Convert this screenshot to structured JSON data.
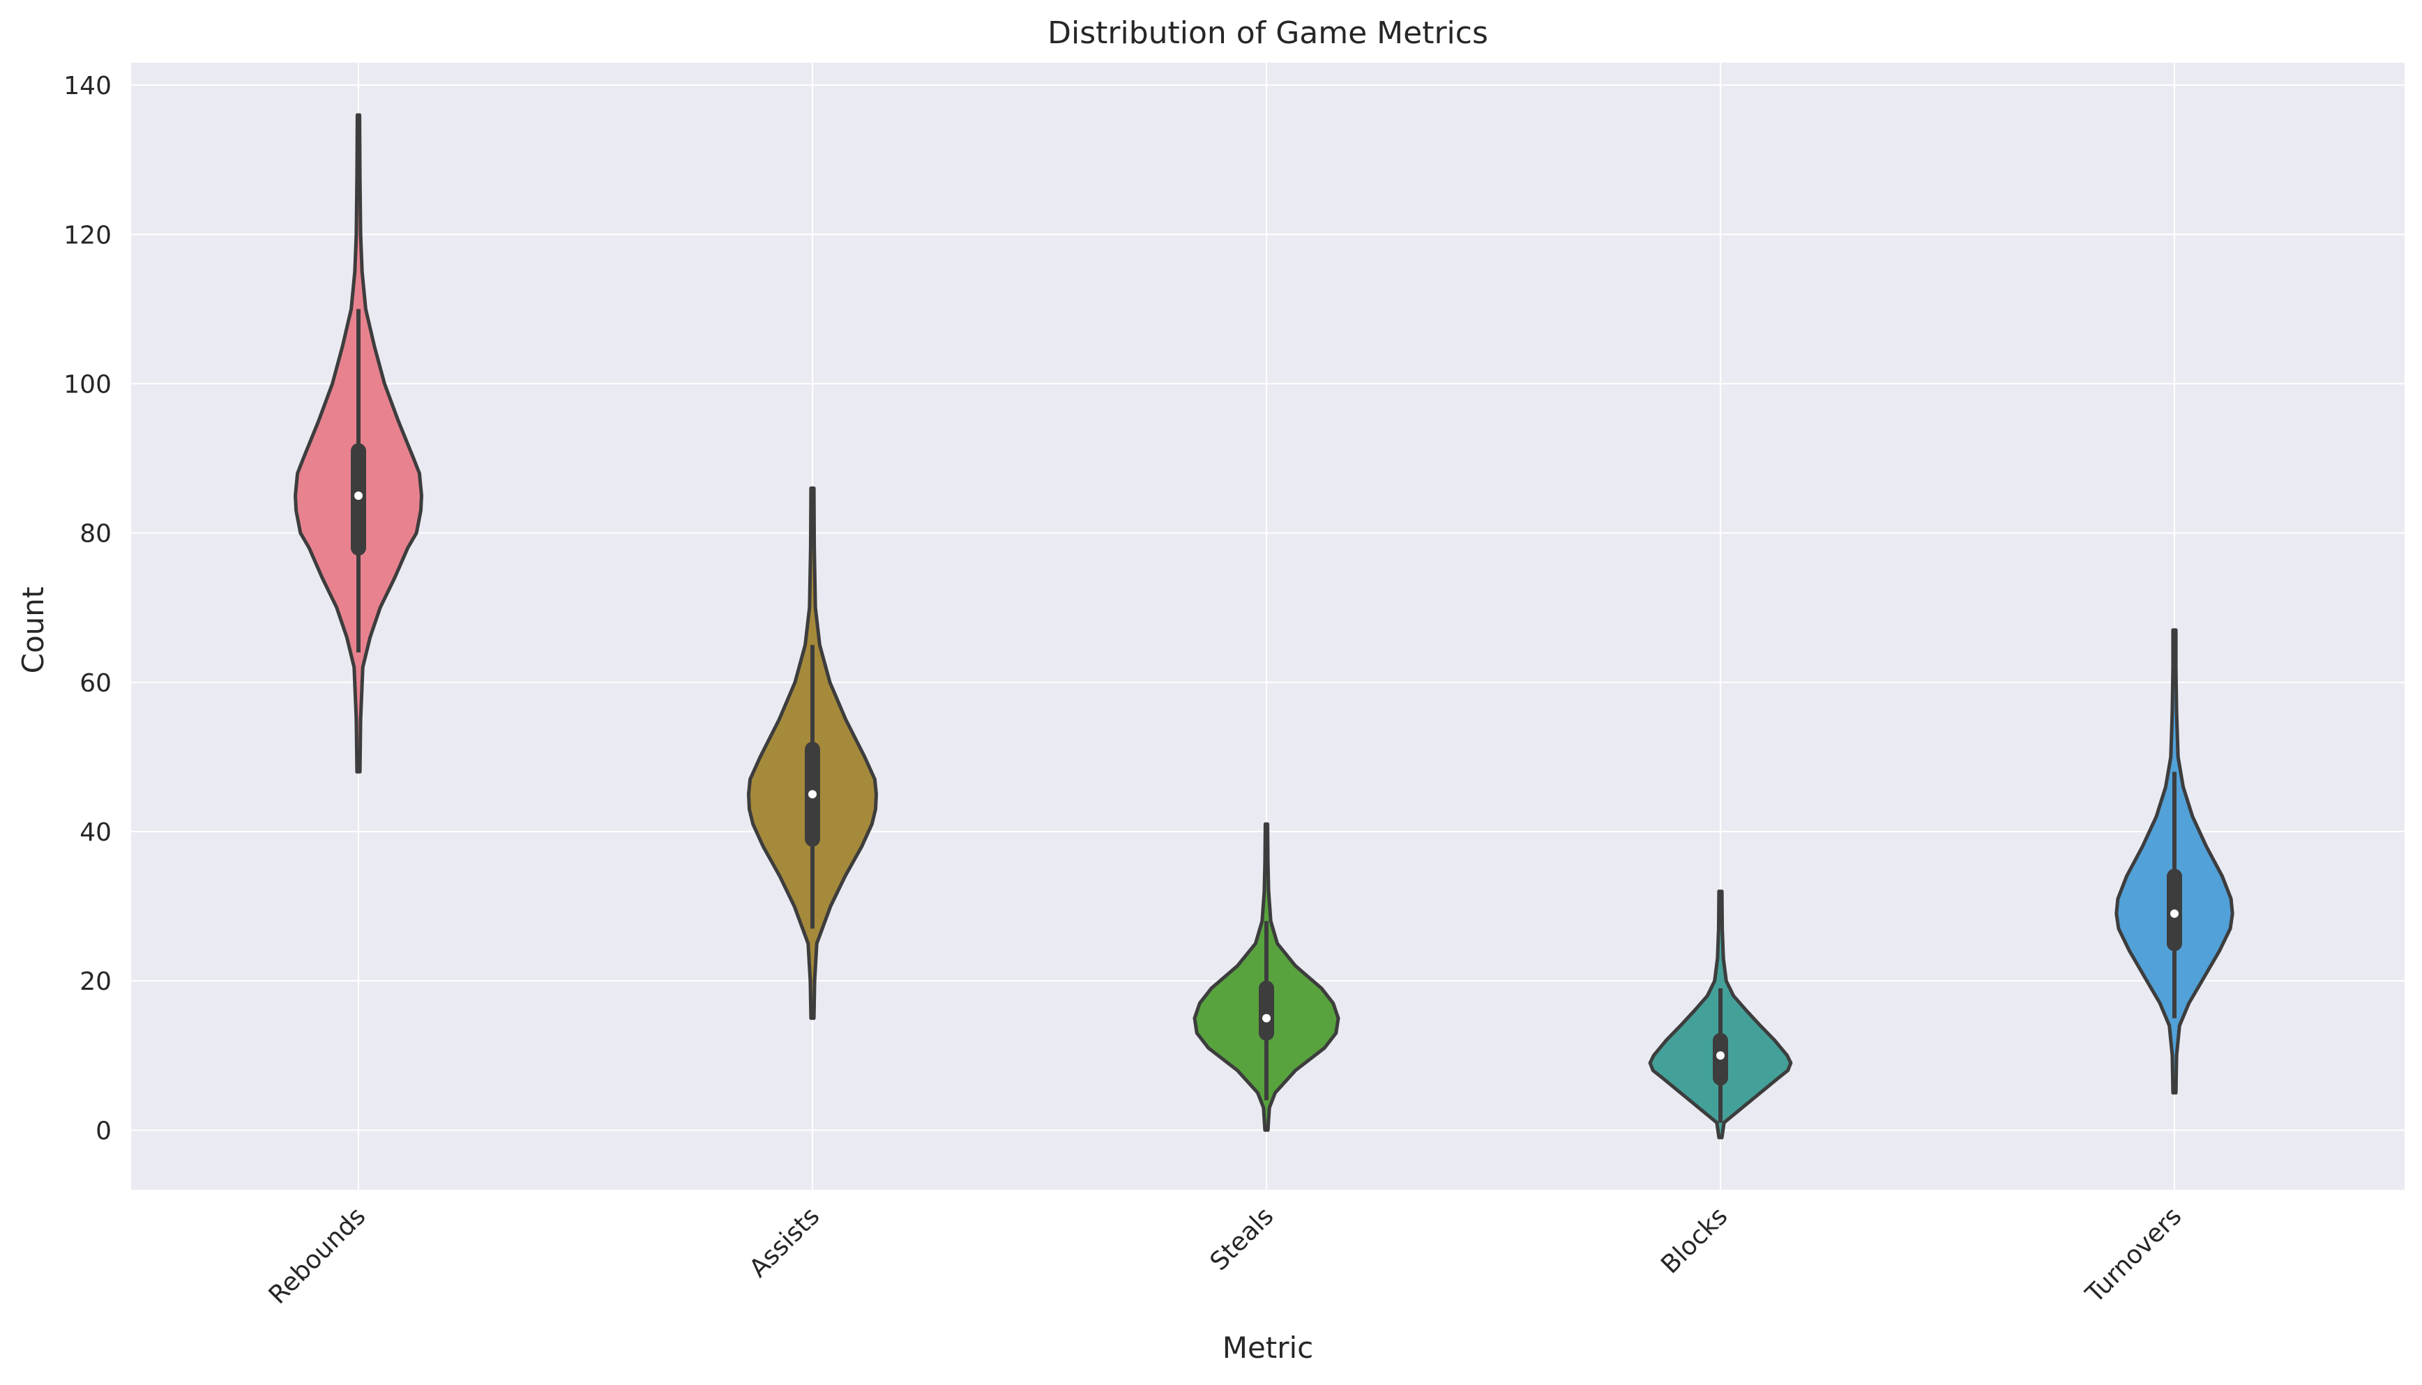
{
  "chart_data": {
    "type": "violin",
    "title": "Distribution of Game Metrics",
    "xlabel": "Metric",
    "ylabel": "Count",
    "ylim": [
      -8,
      143
    ],
    "yticks": [
      0,
      20,
      40,
      60,
      80,
      100,
      120,
      140
    ],
    "grid": true,
    "legend": "none",
    "categories": [
      "Rebounds",
      "Assists",
      "Steals",
      "Blocks",
      "Turnovers"
    ],
    "colors": [
      "#e8828f",
      "#a68a3b",
      "#58a33e",
      "#44a19a",
      "#52a1d8"
    ],
    "edge_color": "#3d3d3d",
    "background_color": "#eaeaf2",
    "grid_color": "#ffffff",
    "series": [
      {
        "category": "Rebounds",
        "min": 48,
        "max": 136,
        "q1": 78,
        "median": 85,
        "q3": 91,
        "whisker_low": 64,
        "whisker_high": 110,
        "profile": [
          [
            48,
            0.02
          ],
          [
            55,
            0.03
          ],
          [
            62,
            0.06
          ],
          [
            66,
            0.16
          ],
          [
            70,
            0.3
          ],
          [
            74,
            0.5
          ],
          [
            78,
            0.68
          ],
          [
            80,
            0.8
          ],
          [
            83,
            0.86
          ],
          [
            85,
            0.87
          ],
          [
            88,
            0.84
          ],
          [
            90,
            0.76
          ],
          [
            95,
            0.55
          ],
          [
            100,
            0.36
          ],
          [
            105,
            0.22
          ],
          [
            110,
            0.1
          ],
          [
            115,
            0.05
          ],
          [
            120,
            0.03
          ],
          [
            128,
            0.02
          ],
          [
            136,
            0.015
          ]
        ]
      },
      {
        "category": "Assists",
        "min": 15,
        "max": 86,
        "q1": 39,
        "median": 45,
        "q3": 51,
        "whisker_low": 27,
        "whisker_high": 65,
        "profile": [
          [
            15,
            0.02
          ],
          [
            20,
            0.03
          ],
          [
            25,
            0.06
          ],
          [
            30,
            0.25
          ],
          [
            34,
            0.45
          ],
          [
            38,
            0.68
          ],
          [
            41,
            0.82
          ],
          [
            43,
            0.87
          ],
          [
            45,
            0.88
          ],
          [
            47,
            0.86
          ],
          [
            50,
            0.72
          ],
          [
            55,
            0.46
          ],
          [
            60,
            0.24
          ],
          [
            65,
            0.1
          ],
          [
            70,
            0.04
          ],
          [
            78,
            0.025
          ],
          [
            86,
            0.02
          ]
        ]
      },
      {
        "category": "Steals",
        "min": 0,
        "max": 41,
        "q1": 13,
        "median": 15,
        "q3": 19,
        "whisker_low": 4,
        "whisker_high": 28,
        "profile": [
          [
            0,
            0.02
          ],
          [
            3,
            0.04
          ],
          [
            5,
            0.12
          ],
          [
            8,
            0.4
          ],
          [
            11,
            0.8
          ],
          [
            13,
            0.96
          ],
          [
            15,
            0.99
          ],
          [
            17,
            0.92
          ],
          [
            19,
            0.76
          ],
          [
            22,
            0.4
          ],
          [
            25,
            0.15
          ],
          [
            28,
            0.06
          ],
          [
            32,
            0.03
          ],
          [
            36,
            0.02
          ],
          [
            41,
            0.015
          ]
        ]
      },
      {
        "category": "Blocks",
        "min": -1,
        "max": 32,
        "q1": 7,
        "median": 10,
        "q3": 12,
        "whisker_low": 1,
        "whisker_high": 19,
        "profile": [
          [
            -1,
            0.02
          ],
          [
            1,
            0.05
          ],
          [
            3,
            0.3
          ],
          [
            5,
            0.55
          ],
          [
            7,
            0.8
          ],
          [
            8,
            0.93
          ],
          [
            9,
            0.97
          ],
          [
            10,
            0.92
          ],
          [
            12,
            0.75
          ],
          [
            14,
            0.55
          ],
          [
            16,
            0.36
          ],
          [
            18,
            0.18
          ],
          [
            20,
            0.08
          ],
          [
            23,
            0.04
          ],
          [
            27,
            0.025
          ],
          [
            32,
            0.02
          ]
        ]
      },
      {
        "category": "Turnovers",
        "min": 5,
        "max": 67,
        "q1": 25,
        "median": 29,
        "q3": 34,
        "whisker_low": 15,
        "whisker_high": 48,
        "profile": [
          [
            5,
            0.02
          ],
          [
            10,
            0.03
          ],
          [
            14,
            0.07
          ],
          [
            17,
            0.2
          ],
          [
            20,
            0.38
          ],
          [
            24,
            0.62
          ],
          [
            27,
            0.77
          ],
          [
            29,
            0.8
          ],
          [
            31,
            0.78
          ],
          [
            34,
            0.66
          ],
          [
            38,
            0.44
          ],
          [
            42,
            0.25
          ],
          [
            46,
            0.12
          ],
          [
            50,
            0.05
          ],
          [
            56,
            0.03
          ],
          [
            62,
            0.02
          ],
          [
            67,
            0.02
          ]
        ]
      }
    ]
  }
}
